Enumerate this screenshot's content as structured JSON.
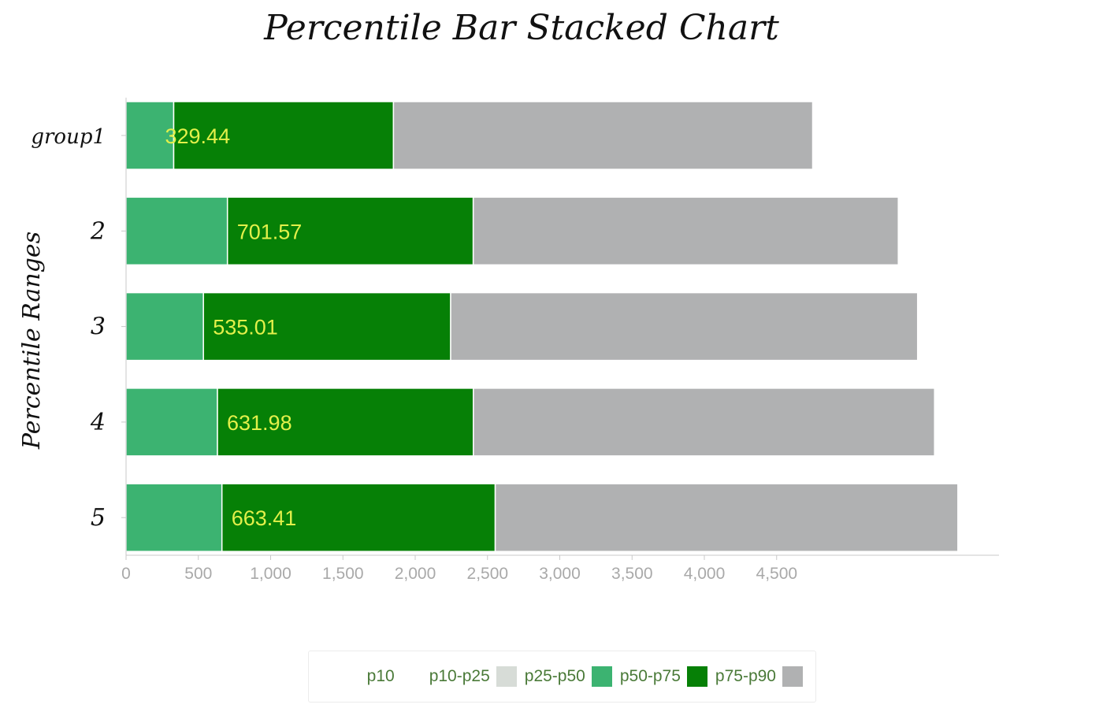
{
  "chart_data": {
    "type": "bar",
    "orientation": "horizontal",
    "stacked": true,
    "title": "Percentile Bar Stacked Chart",
    "ylabel": "Percentile Ranges",
    "xlabel": "",
    "categories": [
      "group1",
      "2",
      "3",
      "4",
      "5"
    ],
    "xlim": [
      0,
      6000
    ],
    "x_ticks": [
      "0",
      "500",
      "1,000",
      "1,500",
      "2,000",
      "2,500",
      "3,000",
      "3,500",
      "4,000",
      "4,500"
    ],
    "x_tick_values": [
      0,
      500,
      1000,
      1500,
      2000,
      2500,
      3000,
      3500,
      4000,
      4500
    ],
    "grid": false,
    "legend_position": "bottom",
    "series": [
      {
        "name": "p10",
        "color": "#ffffff",
        "values": [
          0,
          0,
          0,
          0,
          0
        ]
      },
      {
        "name": "p10-p25",
        "color": "#d7dcd7",
        "values": [
          0,
          0,
          0,
          0,
          0
        ]
      },
      {
        "name": "p25-p50",
        "color": "#3cb371",
        "values": [
          329.44,
          701.57,
          535.01,
          631.98,
          663.41
        ]
      },
      {
        "name": "p50-p75",
        "color": "#068006",
        "values": [
          1520,
          1700,
          1710,
          1770,
          1890
        ]
      },
      {
        "name": "p75-p90",
        "color": "#b0b1b2",
        "values": [
          2900,
          2940,
          3230,
          3190,
          3200
        ]
      }
    ],
    "data_labels": [
      "329.44",
      "701.57",
      "535.01",
      "631.98",
      "663.41"
    ],
    "data_label_color": "#e3f04a"
  }
}
